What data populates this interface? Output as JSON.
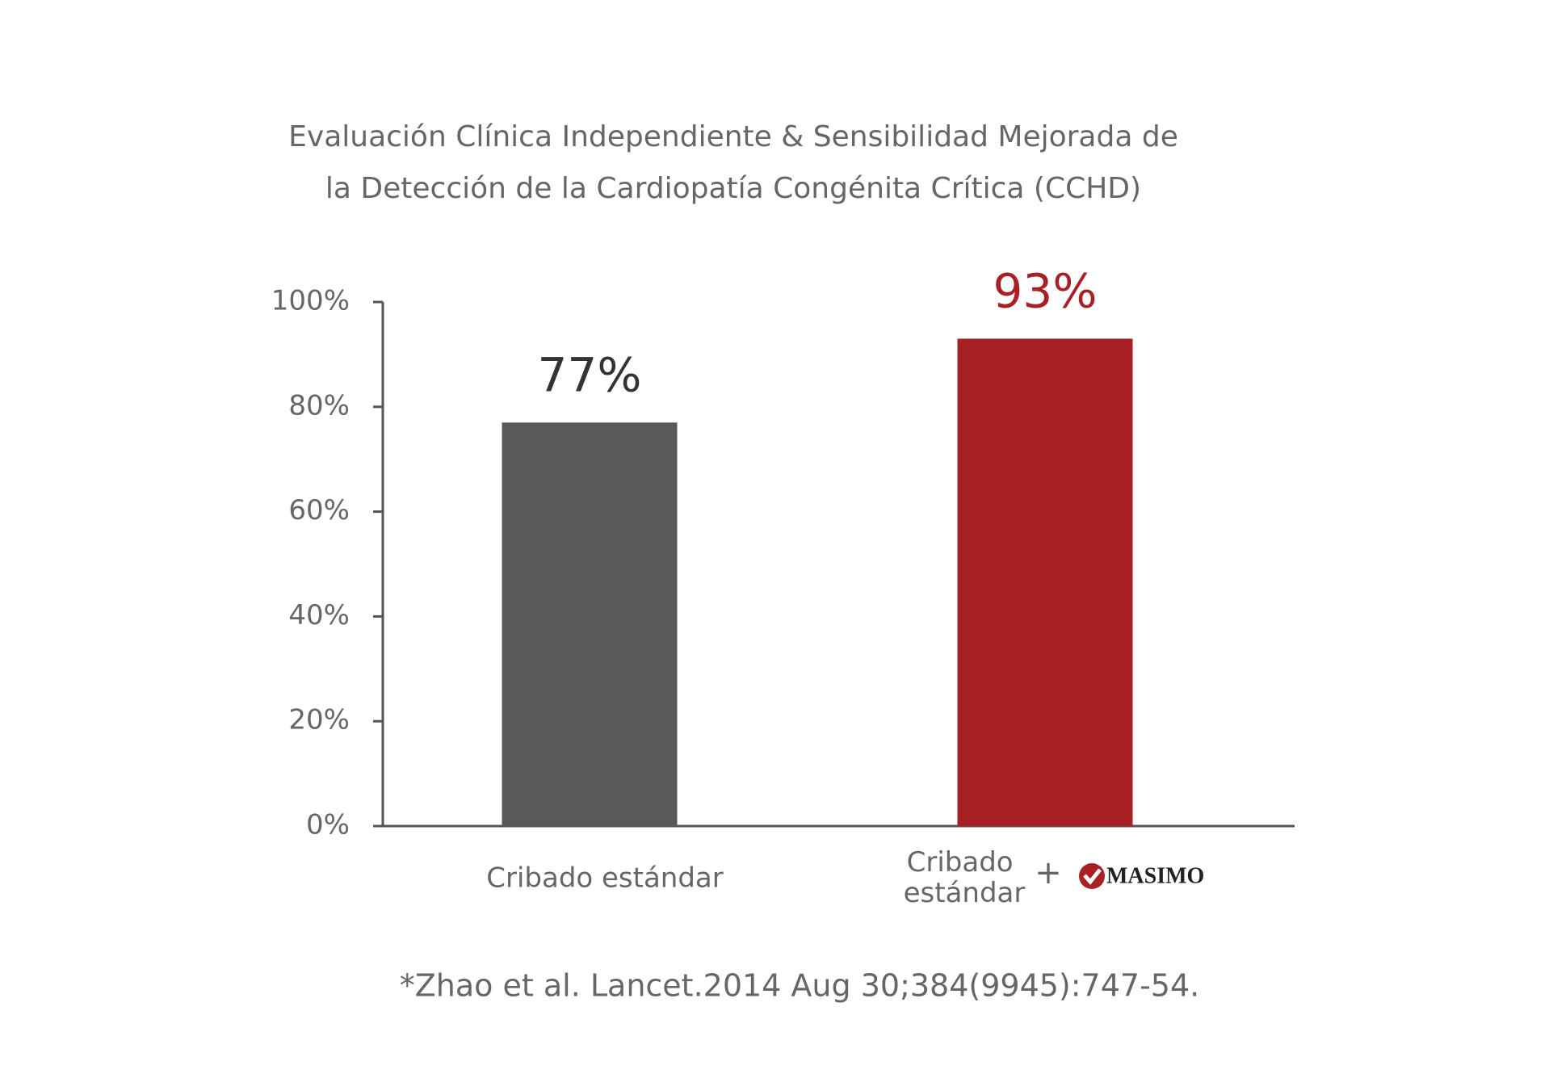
{
  "chart_data": {
    "type": "bar",
    "title": [
      "Evaluación Clínica Independiente & Sensibilidad Mejorada de",
      "la Detección de la Cardiopatía Congénita Crítica (CCHD)"
    ],
    "categories": [
      "Cribado estándar",
      "Cribado estándar"
    ],
    "values": [
      77,
      93
    ],
    "value_labels": [
      "77%",
      "93%"
    ],
    "colors": [
      "#595959",
      "#a81f24"
    ],
    "label_colors": [
      "#333333",
      "#a81f24"
    ],
    "ylim": [
      0,
      100
    ],
    "yticks": [
      {
        "value": 0,
        "label": "0%"
      },
      {
        "value": 20,
        "label": "20%"
      },
      {
        "value": 40,
        "label": "40%"
      },
      {
        "value": 60,
        "label": "60%"
      },
      {
        "value": 80,
        "label": "80%"
      },
      {
        "value": 100,
        "label": "100%"
      }
    ],
    "connector": "+",
    "logo": "MASIMO",
    "footnote": "*Zhao et al. Lancet.2014 Aug 30;384(9945):747-54."
  }
}
